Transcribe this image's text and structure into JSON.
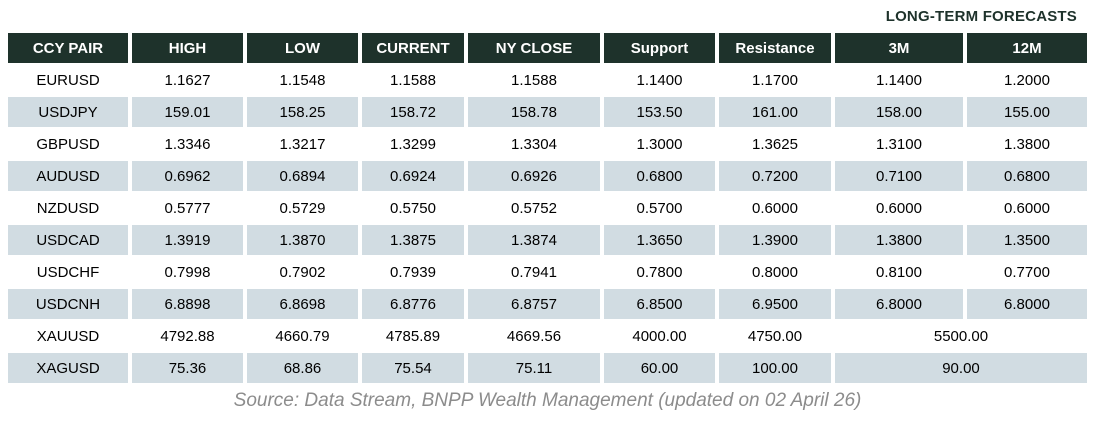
{
  "banner": {
    "label": "LONG-TERM FORECASTS"
  },
  "table": {
    "columns": [
      "CCY PAIR",
      "HIGH",
      "LOW",
      "CURRENT",
      "NY CLOSE",
      "Support",
      "Resistance",
      "3M",
      "12M"
    ],
    "rows": [
      {
        "pair": "EURUSD",
        "high": "1.1627",
        "low": "1.1548",
        "current": "1.1588",
        "ny_close": "1.1588",
        "support": "1.1400",
        "resistance": "1.1700",
        "m3": "1.1400",
        "m12": "1.2000"
      },
      {
        "pair": "USDJPY",
        "high": "159.01",
        "low": "158.25",
        "current": "158.72",
        "ny_close": "158.78",
        "support": "153.50",
        "resistance": "161.00",
        "m3": "158.00",
        "m12": "155.00"
      },
      {
        "pair": "GBPUSD",
        "high": "1.3346",
        "low": "1.3217",
        "current": "1.3299",
        "ny_close": "1.3304",
        "support": "1.3000",
        "resistance": "1.3625",
        "m3": "1.3100",
        "m12": "1.3800"
      },
      {
        "pair": "AUDUSD",
        "high": "0.6962",
        "low": "0.6894",
        "current": "0.6924",
        "ny_close": "0.6926",
        "support": "0.6800",
        "resistance": "0.7200",
        "m3": "0.7100",
        "m12": "0.6800"
      },
      {
        "pair": "NZDUSD",
        "high": "0.5777",
        "low": "0.5729",
        "current": "0.5750",
        "ny_close": "0.5752",
        "support": "0.5700",
        "resistance": "0.6000",
        "m3": "0.6000",
        "m12": "0.6000"
      },
      {
        "pair": "USDCAD",
        "high": "1.3919",
        "low": "1.3870",
        "current": "1.3875",
        "ny_close": "1.3874",
        "support": "1.3650",
        "resistance": "1.3900",
        "m3": "1.3800",
        "m12": "1.3500"
      },
      {
        "pair": "USDCHF",
        "high": "0.7998",
        "low": "0.7902",
        "current": "0.7939",
        "ny_close": "0.7941",
        "support": "0.7800",
        "resistance": "0.8000",
        "m3": "0.8100",
        "m12": "0.7700"
      },
      {
        "pair": "USDCNH",
        "high": "6.8898",
        "low": "6.8698",
        "current": "6.8776",
        "ny_close": "6.8757",
        "support": "6.8500",
        "resistance": "6.9500",
        "m3": "6.8000",
        "m12": "6.8000"
      },
      {
        "pair": "XAUUSD",
        "high": "4792.88",
        "low": "4660.79",
        "current": "4785.89",
        "ny_close": "4669.56",
        "support": "4000.00",
        "resistance": "4750.00",
        "forecast_merged": "5500.00"
      },
      {
        "pair": "XAGUSD",
        "high": "75.36",
        "low": "68.86",
        "current": "75.54",
        "ny_close": "75.11",
        "support": "60.00",
        "resistance": "100.00",
        "forecast_merged": "90.00"
      }
    ]
  },
  "source_note": "Source: Data Stream, BNPP Wealth Management (updated on 02 April 26)",
  "colors": {
    "header_bg": "#1e322b",
    "row_alt_bg": "#d1dce2",
    "banner_text": "#1e322b",
    "source_text": "#8c8c8c"
  }
}
